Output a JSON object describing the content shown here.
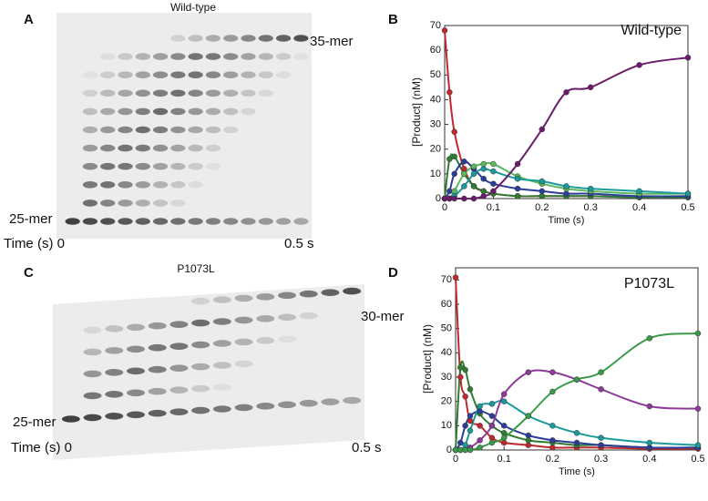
{
  "gels": [
    {
      "panel": "A",
      "title": "Wild-type",
      "top_label": "35-mer",
      "bottom_label": "25-mer",
      "time_start": "Time (s) 0",
      "time_end": "0.5 s"
    },
    {
      "panel": "C",
      "title": "P1073L",
      "top_label": "30-mer",
      "bottom_label": "25-mer",
      "time_start": "Time (s) 0",
      "time_end": "0.5 s"
    }
  ],
  "chart_data": [
    {
      "type": "line",
      "panel": "B",
      "annotation": "Wild-type",
      "x_label": "Time (s)",
      "y_label": "[Product] (nM)",
      "x": [
        0,
        0.01,
        0.02,
        0.04,
        0.06,
        0.08,
        0.1,
        0.15,
        0.2,
        0.25,
        0.3,
        0.4,
        0.5
      ],
      "xlim": [
        0,
        0.5
      ],
      "ylim": [
        0,
        70
      ],
      "xticks": [
        0,
        0.1,
        0.2,
        0.3,
        0.4,
        0.5
      ],
      "yticks": [
        0,
        10,
        20,
        30,
        40,
        50,
        60,
        70
      ],
      "series": [
        {
          "color": "#c0282d",
          "values": [
            68,
            43,
            27,
            12,
            5,
            3,
            2,
            1,
            1,
            1,
            1,
            0.5,
            0.5
          ]
        },
        {
          "color": "#2e7d32",
          "values": [
            0,
            16,
            17,
            10,
            5,
            3,
            2,
            1,
            1,
            1,
            1,
            0.5,
            0.5
          ]
        },
        {
          "color": "#2b3f9a",
          "values": [
            0,
            3,
            10,
            15,
            12,
            8,
            6,
            4,
            3,
            2,
            2,
            1,
            1
          ]
        },
        {
          "color": "#5cb85c",
          "values": [
            0,
            0,
            3,
            10,
            13,
            14,
            14,
            9,
            6,
            4,
            3,
            2,
            2
          ]
        },
        {
          "color": "#1a9a9a",
          "values": [
            0,
            0,
            1,
            5,
            10,
            12,
            11,
            8,
            7,
            5,
            4,
            3,
            2
          ]
        },
        {
          "color": "#6a1b6a",
          "values": [
            0,
            0,
            0,
            0,
            0,
            1,
            3,
            14,
            28,
            43,
            45,
            54,
            57
          ]
        }
      ]
    },
    {
      "type": "line",
      "panel": "D",
      "annotation": "P1073L",
      "x_label": "Time (s)",
      "y_label": "[Product] (nM)",
      "x": [
        0,
        0.01,
        0.02,
        0.03,
        0.05,
        0.075,
        0.1,
        0.15,
        0.2,
        0.25,
        0.3,
        0.4,
        0.5
      ],
      "xlim": [
        0,
        0.5
      ],
      "ylim": [
        0,
        75
      ],
      "xticks": [
        0,
        0.1,
        0.2,
        0.3,
        0.4,
        0.5
      ],
      "yticks": [
        0,
        10,
        20,
        30,
        40,
        50,
        60,
        70
      ],
      "series": [
        {
          "color": "#c0282d",
          "values": [
            71,
            30,
            22,
            12,
            10,
            5,
            3,
            2,
            1,
            1,
            1,
            0.5,
            0.5
          ]
        },
        {
          "color": "#2e7d32",
          "values": [
            0,
            34,
            33,
            25,
            15,
            10,
            7,
            4,
            3,
            2,
            2,
            1,
            1
          ]
        },
        {
          "color": "#2b3f9a",
          "values": [
            0,
            3,
            10,
            14,
            16,
            14,
            10,
            6,
            4,
            3,
            2,
            1,
            1
          ]
        },
        {
          "color": "#1a9a9a",
          "values": [
            0,
            0,
            2,
            8,
            18,
            19,
            20,
            14,
            10,
            7,
            5,
            3,
            2
          ]
        },
        {
          "color": "#8e3a9a",
          "values": [
            0,
            0,
            0,
            1,
            4,
            10,
            23,
            32,
            32,
            29,
            25,
            18,
            17
          ]
        },
        {
          "color": "#3a9a4a",
          "values": [
            0,
            0,
            0,
            0,
            1,
            3,
            5,
            14,
            24,
            29,
            32,
            46,
            48
          ]
        }
      ]
    }
  ]
}
